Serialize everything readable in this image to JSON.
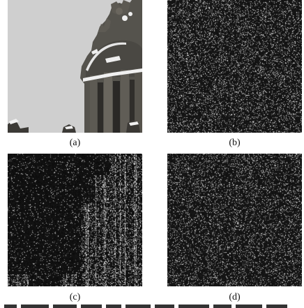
{
  "figure": {
    "panels": [
      {
        "id": "a",
        "label": "(a)",
        "content": "photograph"
      },
      {
        "id": "b",
        "label": "(b)",
        "content": "noise"
      },
      {
        "id": "c",
        "label": "(c)",
        "content": "edge-map"
      },
      {
        "id": "d",
        "label": "(d)",
        "content": "noise"
      }
    ]
  },
  "colors": {
    "background": "#ffffff",
    "noise_panel": "#111111",
    "photo_sky": "#cfcfcf",
    "photo_stone": "#4a4a46",
    "photo_snow": "#f0f0f0"
  }
}
